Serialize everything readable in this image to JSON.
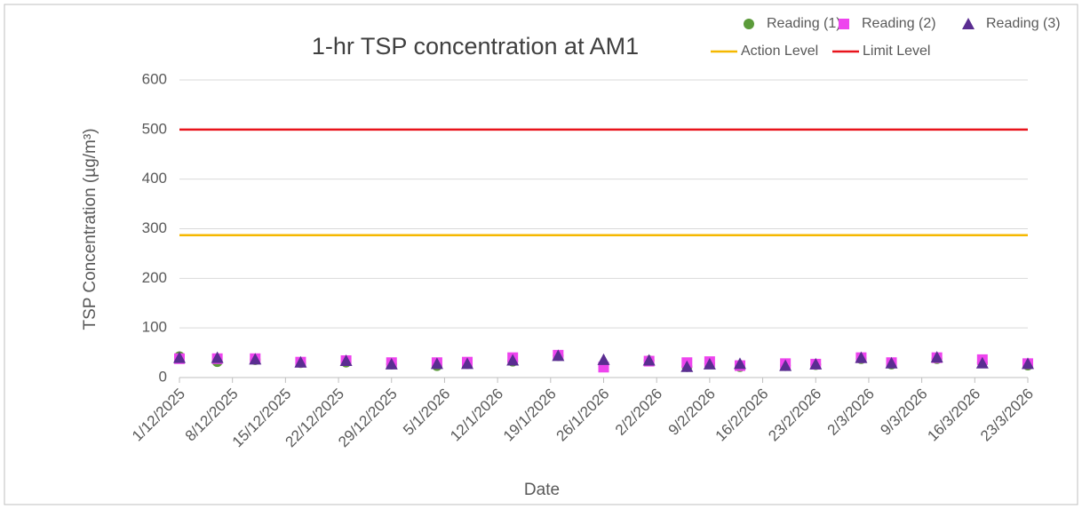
{
  "chart_data": {
    "type": "scatter",
    "title": "1-hr TSP concentration at AM1",
    "x_label": "Date",
    "y_label": "TSP Concentration (µg/m³)",
    "x": [
      "1/12/2025",
      "6/12/2025",
      "11/12/2025",
      "17/12/2025",
      "23/12/2025",
      "29/12/2025",
      "4/1/2026",
      "8/1/2026",
      "14/1/2026",
      "20/1/2026",
      "26/1/2026",
      "1/2/2026",
      "6/2/2026",
      "9/2/2026",
      "13/2/2026",
      "19/2/2026",
      "23/2/2026",
      "1/3/2026",
      "5/3/2026",
      "11/3/2026",
      "17/3/2026",
      "23/3/2026"
    ],
    "series": [
      {
        "name": "Reading (1)",
        "color": "#5b9b3a",
        "marker": "circle",
        "values": [
          42,
          32,
          36,
          30,
          31,
          27,
          24,
          28,
          33,
          44,
          22,
          34,
          22,
          28,
          22,
          24,
          26,
          38,
          27,
          38,
          30,
          25
        ]
      },
      {
        "name": "Reading (2)",
        "color": "#ee44ee",
        "marker": "square",
        "values": [
          38,
          38,
          38,
          31,
          34,
          30,
          30,
          31,
          40,
          45,
          21,
          33,
          30,
          32,
          24,
          28,
          27,
          40,
          30,
          40,
          36,
          28
        ]
      },
      {
        "name": "Reading (3)",
        "color": "#5a2d91",
        "marker": "triangle",
        "values": [
          40,
          40,
          37,
          31,
          34,
          27,
          28,
          28,
          35,
          44,
          36,
          35,
          22,
          27,
          28,
          24,
          27,
          40,
          29,
          41,
          29,
          28
        ]
      }
    ],
    "levels": [
      {
        "name": "Action Level",
        "color": "#f5b800",
        "value": 287
      },
      {
        "name": "Limit Level",
        "color": "#e8141c",
        "value": 500
      }
    ],
    "xlim": [
      "1/12/2025",
      "23/3/2026"
    ],
    "xticks": [
      "1/12/2025",
      "8/12/2025",
      "15/12/2025",
      "22/12/2025",
      "29/12/2025",
      "5/1/2026",
      "12/1/2026",
      "19/1/2026",
      "26/1/2026",
      "2/2/2026",
      "9/2/2026",
      "16/2/2026",
      "23/2/2026",
      "2/3/2026",
      "9/3/2026",
      "16/3/2026",
      "23/3/2026"
    ],
    "ylim": [
      0,
      600
    ],
    "yticks": [
      0,
      100,
      200,
      300,
      400,
      500,
      600
    ],
    "grid": true,
    "legend": "top-right"
  }
}
